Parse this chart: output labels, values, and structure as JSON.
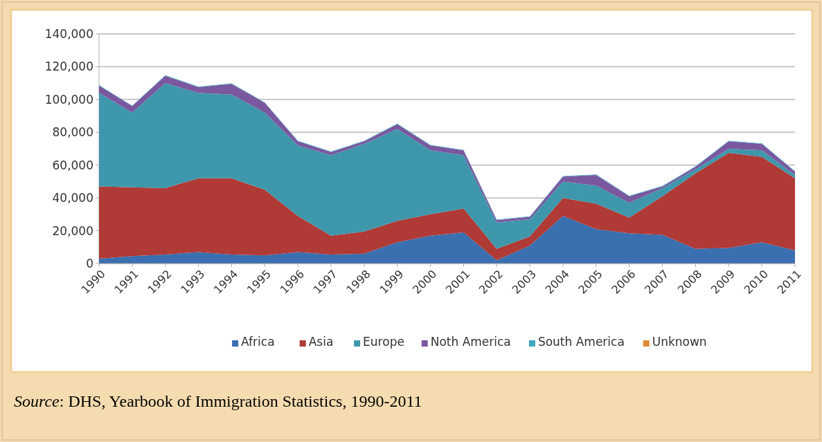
{
  "chart_data": {
    "type": "area",
    "stacked": true,
    "categories": [
      "1990",
      "1991",
      "1992",
      "1993",
      "1994",
      "1995",
      "1996",
      "1997",
      "1998",
      "1999",
      "2000",
      "2001",
      "2002",
      "2003",
      "2004",
      "2005",
      "2006",
      "2007",
      "2008",
      "2009",
      "2010",
      "2011"
    ],
    "series": [
      {
        "name": "Africa",
        "color": "#3a6fb0",
        "values": [
          3000,
          4500,
          5500,
          7000,
          5500,
          5000,
          7000,
          5500,
          6000,
          13000,
          17000,
          19000,
          2000,
          11000,
          29000,
          21000,
          18500,
          17500,
          9000,
          9500,
          13000,
          8000
        ]
      },
      {
        "name": "Asia",
        "color": "#b03a36",
        "values": [
          44000,
          42000,
          40500,
          45000,
          46500,
          40000,
          22000,
          11500,
          13500,
          13000,
          13000,
          14500,
          7000,
          5500,
          11000,
          15500,
          9500,
          23500,
          46000,
          58000,
          52000,
          44000
        ]
      },
      {
        "name": "Europe",
        "color": "#3f97ab",
        "values": [
          57000,
          45500,
          64000,
          52000,
          51000,
          47000,
          43000,
          49000,
          53500,
          56000,
          39000,
          32500,
          16000,
          10500,
          10000,
          11000,
          9000,
          5000,
          2500,
          2500,
          4000,
          2000
        ]
      },
      {
        "name": "Noth America",
        "color": "#7a58a0",
        "values": [
          4500,
          4000,
          4500,
          3500,
          6500,
          6000,
          2500,
          2000,
          1500,
          3000,
          3000,
          3000,
          1500,
          1500,
          3000,
          6500,
          4000,
          1000,
          1500,
          4500,
          4000,
          2000
        ]
      },
      {
        "name": "South America",
        "color": "#3fa8c0",
        "values": [
          300,
          300,
          300,
          300,
          300,
          300,
          300,
          300,
          300,
          300,
          300,
          300,
          300,
          300,
          300,
          300,
          300,
          300,
          300,
          300,
          300,
          300
        ]
      },
      {
        "name": "Unknown",
        "color": "#e08a3a",
        "values": [
          null,
          null,
          null,
          null,
          null,
          null,
          null,
          null,
          null,
          null,
          null,
          null,
          null,
          null,
          null,
          null,
          null,
          null,
          null,
          null,
          null,
          null
        ]
      }
    ],
    "ylim": [
      0,
      140000
    ],
    "yticks": [
      {
        "value": 0,
        "label": "0"
      },
      {
        "value": 20000,
        "label": "20,000"
      },
      {
        "value": 40000,
        "label": "40,000"
      },
      {
        "value": 60000,
        "label": "60,000"
      },
      {
        "value": 80000,
        "label": "80,000"
      },
      {
        "value": 100000,
        "label": "100,000"
      },
      {
        "value": 120000,
        "label": "120,000"
      },
      {
        "value": 140000,
        "label": "140,000"
      }
    ],
    "grid": "y",
    "legend": "bottom",
    "annotations": [
      "Source: DHS, Yearbook of Immigration Statistics, 1990-2011"
    ]
  }
}
